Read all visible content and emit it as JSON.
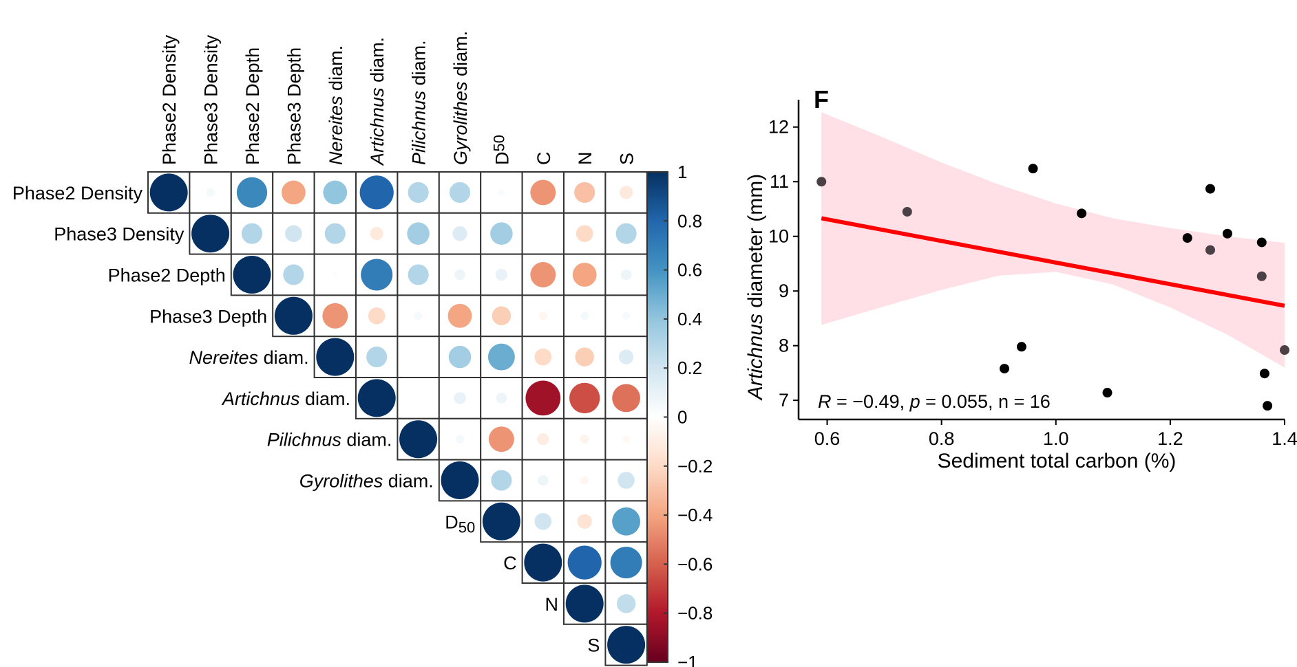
{
  "chart_data": [
    {
      "type": "heatmap",
      "title": "",
      "variables": [
        {
          "pre": "Phase2 Density",
          "it": "",
          "post": ""
        },
        {
          "pre": "Phase3 Density",
          "it": "",
          "post": ""
        },
        {
          "pre": "Phase2 Depth",
          "it": "",
          "post": ""
        },
        {
          "pre": "Phase3 Depth",
          "it": "",
          "post": ""
        },
        {
          "pre": "",
          "it": "Nereites",
          "post": " diam."
        },
        {
          "pre": "",
          "it": "Artichnus",
          "post": " diam."
        },
        {
          "pre": "",
          "it": "Pilichnus",
          "post": " diam."
        },
        {
          "pre": "",
          "it": "Gyrolithes",
          "post": " diam."
        },
        {
          "pre": "D",
          "it": "",
          "post": "",
          "sub": "50"
        },
        {
          "pre": "C",
          "it": "",
          "post": ""
        },
        {
          "pre": "N",
          "it": "",
          "post": ""
        },
        {
          "pre": "S",
          "it": "",
          "post": ""
        }
      ],
      "matrix": [
        [
          1.0,
          0.05,
          0.65,
          -0.4,
          0.4,
          0.8,
          0.3,
          0.3,
          0.03,
          -0.45,
          -0.3,
          -0.12
        ],
        [
          null,
          1.0,
          0.3,
          0.2,
          0.3,
          -0.12,
          0.35,
          0.15,
          0.35,
          0.0,
          -0.2,
          0.3
        ],
        [
          null,
          null,
          1.0,
          0.3,
          0.02,
          0.7,
          0.3,
          0.08,
          0.1,
          -0.45,
          -0.4,
          0.08
        ],
        [
          null,
          null,
          null,
          1.0,
          -0.45,
          -0.2,
          0.05,
          -0.4,
          -0.25,
          -0.05,
          0.05,
          0.04
        ],
        [
          null,
          null,
          null,
          null,
          1.0,
          0.3,
          0.0,
          0.35,
          0.5,
          -0.2,
          -0.25,
          0.15
        ],
        [
          null,
          null,
          null,
          null,
          null,
          1.0,
          0.0,
          0.1,
          0.08,
          -0.85,
          -0.65,
          -0.55
        ],
        [
          null,
          null,
          null,
          null,
          null,
          null,
          1.0,
          0.05,
          -0.45,
          -0.1,
          -0.06,
          -0.04
        ],
        [
          null,
          null,
          null,
          null,
          null,
          null,
          null,
          1.0,
          0.3,
          0.08,
          -0.05,
          0.2
        ],
        [
          null,
          null,
          null,
          null,
          null,
          null,
          null,
          null,
          1.0,
          0.2,
          -0.15,
          0.55
        ],
        [
          null,
          null,
          null,
          null,
          null,
          null,
          null,
          null,
          null,
          1.0,
          0.8,
          0.7
        ],
        [
          null,
          null,
          null,
          null,
          null,
          null,
          null,
          null,
          null,
          null,
          1.0,
          0.25
        ],
        [
          null,
          null,
          null,
          null,
          null,
          null,
          null,
          null,
          null,
          null,
          null,
          1.0
        ]
      ],
      "colorbar": {
        "range": [
          -1,
          1
        ],
        "ticks": [
          1,
          0.8,
          0.6,
          0.4,
          0.2,
          0,
          -0.2,
          -0.4,
          -0.6,
          -0.8,
          -1
        ],
        "tick_labels": [
          "1",
          "0.8",
          "0.6",
          "0.4",
          "0.2",
          "0",
          "−0.2",
          "−0.4",
          "−0.6",
          "−0.8",
          "−1"
        ],
        "colors": [
          "#67001F",
          "#B2182B",
          "#D6604D",
          "#F4A582",
          "#FDDBC7",
          "#FFFFFF",
          "#D1E5F0",
          "#92C5DE",
          "#4393C3",
          "#2166AC",
          "#053061"
        ]
      }
    },
    {
      "type": "scatter",
      "panel_label": "F",
      "xlabel": "Sediment total carbon (%)",
      "ylabel_italic": "Artichnus",
      "ylabel_rest": " diameter (mm)",
      "xlim": [
        0.55,
        1.4
      ],
      "ylim": [
        6.65,
        12.5
      ],
      "xticks": [
        0.6,
        0.8,
        1.0,
        1.2,
        1.4
      ],
      "xtick_labels": [
        "0.6",
        "0.8",
        "1.0",
        "1.2",
        "1.4"
      ],
      "yticks": [
        7,
        8,
        9,
        10,
        11,
        12
      ],
      "ytick_labels": [
        "7",
        "8",
        "9",
        "10",
        "11",
        "12"
      ],
      "points": [
        {
          "x": 0.59,
          "y": 11.0,
          "shade": "dim"
        },
        {
          "x": 0.74,
          "y": 10.45,
          "shade": "dim"
        },
        {
          "x": 0.91,
          "y": 7.58,
          "shade": "dark"
        },
        {
          "x": 0.94,
          "y": 7.98,
          "shade": "dark"
        },
        {
          "x": 0.96,
          "y": 11.24,
          "shade": "dark"
        },
        {
          "x": 1.045,
          "y": 10.42,
          "shade": "dark"
        },
        {
          "x": 1.09,
          "y": 7.14,
          "shade": "dark"
        },
        {
          "x": 1.23,
          "y": 9.97,
          "shade": "dark"
        },
        {
          "x": 1.27,
          "y": 10.87,
          "shade": "dark"
        },
        {
          "x": 1.27,
          "y": 9.75,
          "shade": "dim"
        },
        {
          "x": 1.3,
          "y": 10.05,
          "shade": "dark"
        },
        {
          "x": 1.36,
          "y": 9.89,
          "shade": "dark"
        },
        {
          "x": 1.36,
          "y": 9.27,
          "shade": "dim"
        },
        {
          "x": 1.365,
          "y": 7.49,
          "shade": "dark"
        },
        {
          "x": 1.37,
          "y": 6.9,
          "shade": "dark"
        },
        {
          "x": 1.4,
          "y": 7.92,
          "shade": "dim"
        }
      ],
      "fit_line": {
        "x": [
          0.59,
          1.4
        ],
        "y": [
          10.33,
          8.73
        ],
        "color": "#FF0000"
      },
      "confidence_band": {
        "color": "#FFE0E6",
        "x": [
          0.59,
          0.7,
          0.8,
          0.9,
          1.0,
          1.1,
          1.2,
          1.3,
          1.4
        ],
        "upper": [
          12.27,
          11.8,
          11.35,
          10.95,
          10.6,
          10.33,
          10.15,
          10.0,
          9.88
        ],
        "lower": [
          8.38,
          8.72,
          9.02,
          9.28,
          9.35,
          9.12,
          8.7,
          8.2,
          7.6
        ]
      },
      "annotation": {
        "r_label": "R",
        "r_value": " = −0.49, ",
        "p_label": "p",
        "p_value": " = 0.055, n = 16"
      }
    }
  ]
}
